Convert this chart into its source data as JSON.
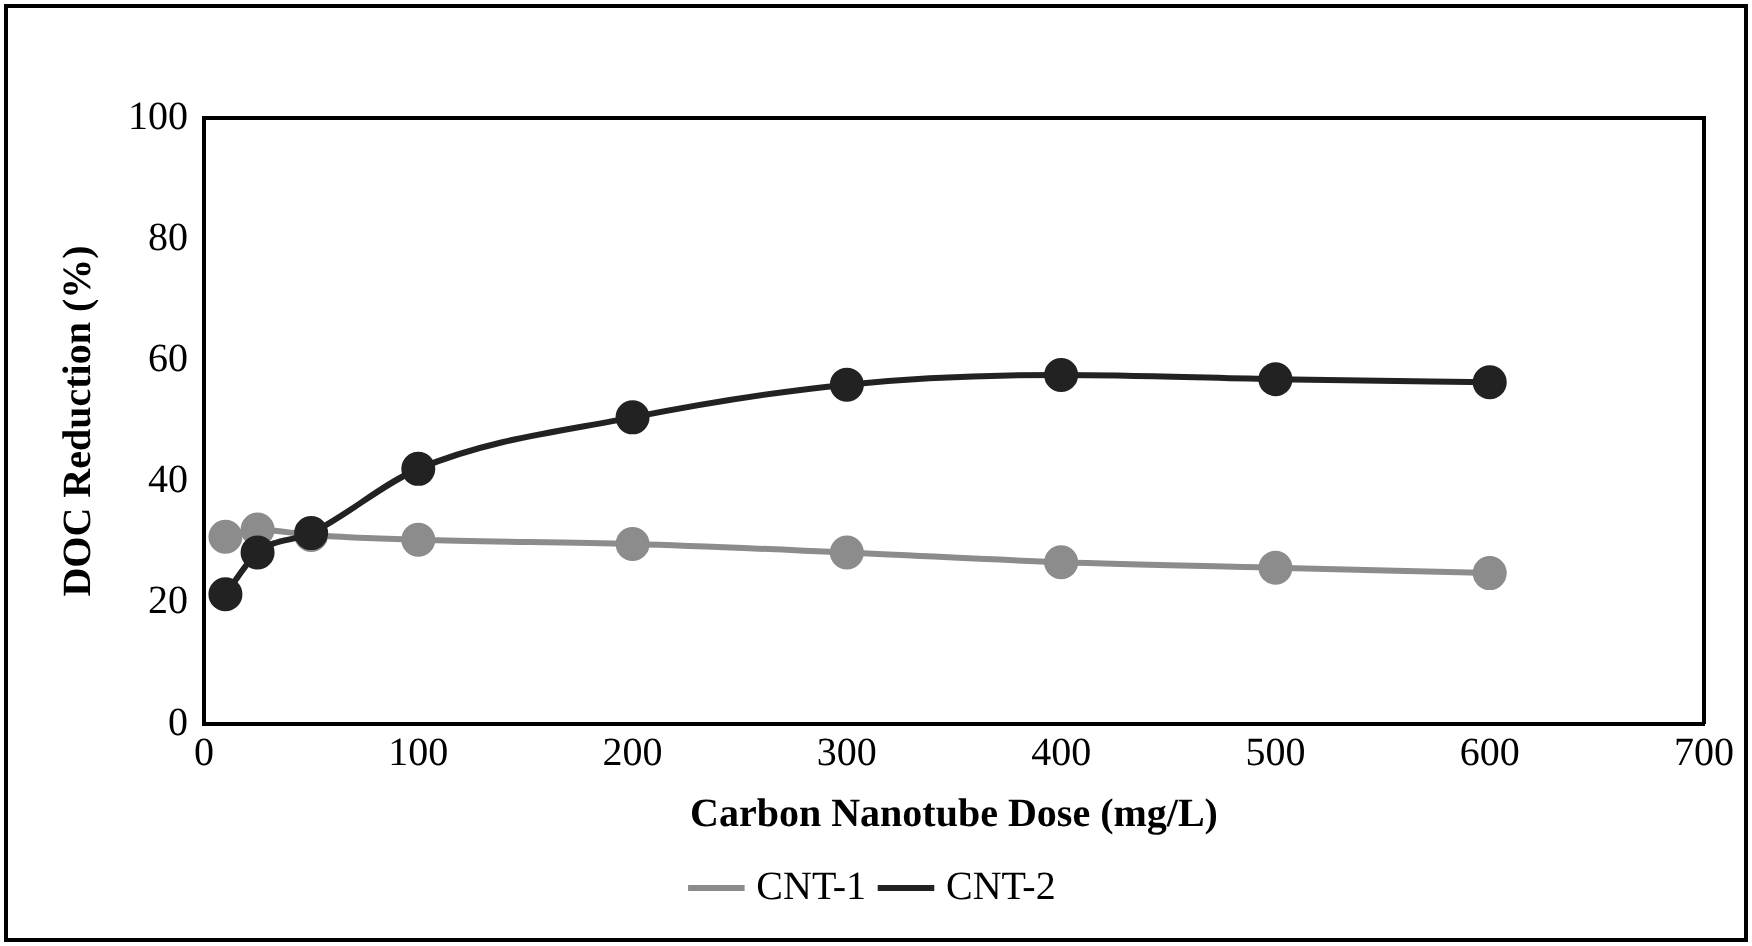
{
  "chart_data": {
    "type": "line",
    "xlabel": "Carbon Nanotube Dose (mg/L)",
    "ylabel": "DOC Reduction (%)",
    "x": [
      10,
      25,
      50,
      100,
      200,
      300,
      400,
      500,
      600
    ],
    "series": [
      {
        "name": "CNT-1",
        "color": "#8c8c8c",
        "values": [
          30.9,
          32.1,
          31.2,
          30.4,
          29.7,
          28.3,
          26.7,
          25.8,
          24.9
        ]
      },
      {
        "name": "CNT-2",
        "color": "#222222",
        "values": [
          21.4,
          28.3,
          31.5,
          42.1,
          50.6,
          56.0,
          57.6,
          56.9,
          56.4
        ]
      }
    ],
    "xlim": [
      0,
      700
    ],
    "xticks": [
      0,
      100,
      200,
      300,
      400,
      500,
      600,
      700
    ],
    "ylim": [
      0,
      100
    ],
    "yticks": [
      0,
      20,
      40,
      60,
      80,
      100
    ],
    "grid": false,
    "legend": "bottom",
    "marker": "circle",
    "line_style": "solid"
  }
}
